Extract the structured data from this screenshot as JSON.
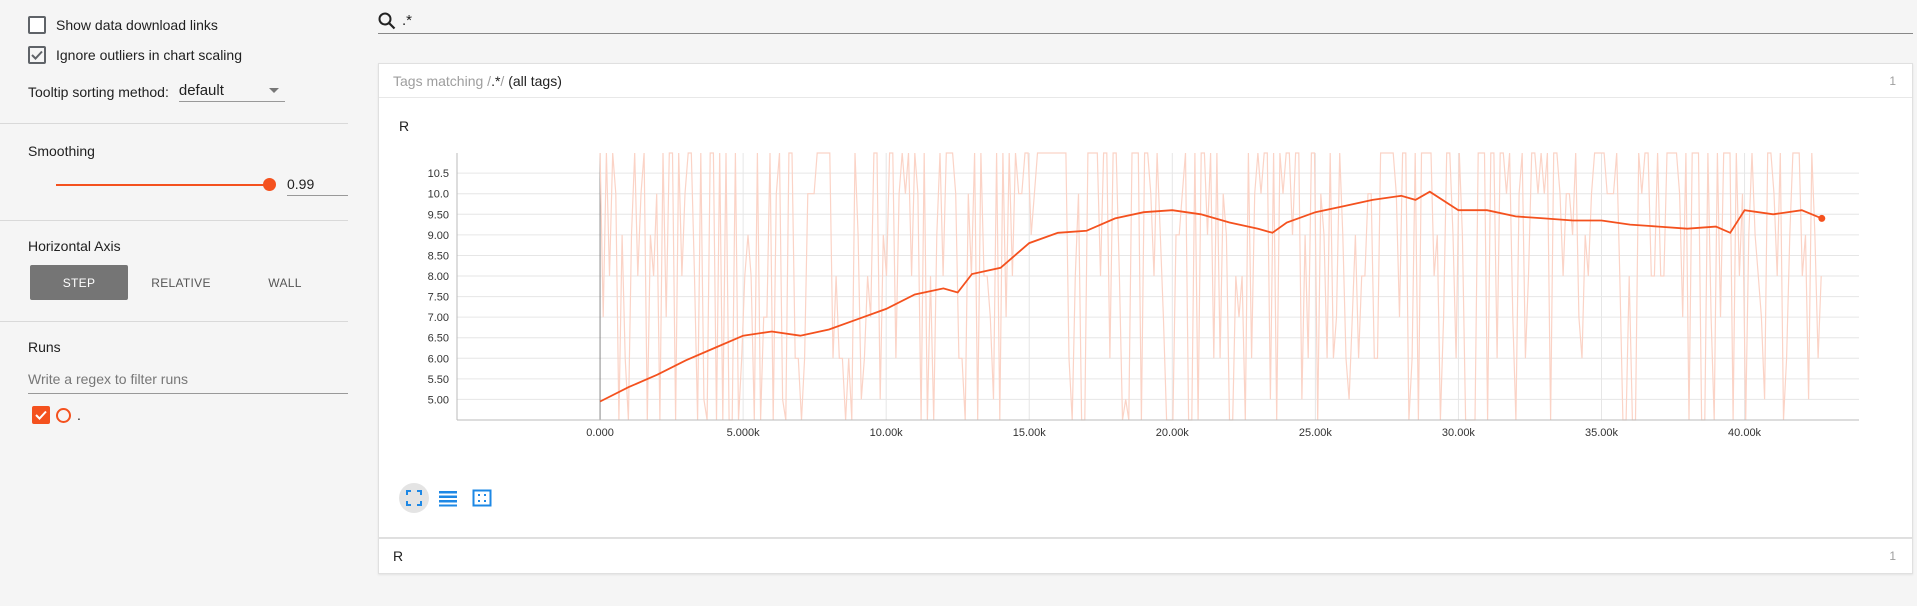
{
  "sidebar": {
    "show_download_links": {
      "label": "Show data download links",
      "checked": false
    },
    "ignore_outliers": {
      "label": "Ignore outliers in chart scaling",
      "checked": true
    },
    "tooltip_sorting": {
      "label": "Tooltip sorting method:",
      "value": "default"
    },
    "smoothing": {
      "title": "Smoothing",
      "value": "0.99",
      "fraction": 0.99
    },
    "horizontal_axis": {
      "title": "Horizontal Axis",
      "options": [
        "STEP",
        "RELATIVE",
        "WALL"
      ],
      "selected": "STEP"
    },
    "runs": {
      "title": "Runs",
      "filter_placeholder": "Write a regex to filter runs",
      "items": [
        {
          "name": ".",
          "checked": true,
          "color": "#f4511e"
        }
      ]
    }
  },
  "search": {
    "value": ".*"
  },
  "tag_group": {
    "prefix": "Tags matching /",
    "regex": ".*",
    "suffix": "/ ",
    "all_tags": "(all tags)",
    "count": "1"
  },
  "chart_card": {
    "title": "R"
  },
  "bottom_card": {
    "title": "R",
    "count": "1"
  },
  "colors": {
    "accent": "#f4511e",
    "raw_line": "#fbd3c6"
  },
  "icons": {
    "search": "search-icon",
    "fit": "fit-domain-icon",
    "log": "log-scale-icon",
    "expand": "expand-icon"
  },
  "chart_data": {
    "type": "line",
    "title": "R",
    "xlabel": "",
    "ylabel": "",
    "xlim": [
      -5000,
      44000
    ],
    "ylim": [
      4.5,
      10.99
    ],
    "xticks": [
      0,
      5000,
      10000,
      15000,
      20000,
      25000,
      30000,
      35000,
      40000
    ],
    "xtick_labels": [
      "0.000",
      "5.000k",
      "10.00k",
      "15.00k",
      "20.00k",
      "25.00k",
      "30.00k",
      "35.00k",
      "40.00k"
    ],
    "yticks": [
      5.0,
      5.5,
      6.0,
      6.5,
      7.0,
      7.5,
      8.0,
      8.5,
      9.0,
      9.5,
      10.0,
      10.5
    ],
    "ytick_labels": [
      "5.00",
      "5.50",
      "6.00",
      "6.50",
      "7.00",
      "7.50",
      "8.00",
      "8.50",
      "9.00",
      "9.50",
      "10.0",
      "10.5"
    ],
    "grid": true,
    "series": [
      {
        "smoothed": true,
        "x": [
          0,
          1000,
          2000,
          3000,
          4000,
          5000,
          6000,
          7000,
          8000,
          9000,
          10000,
          11000,
          12000,
          12500,
          13000,
          14000,
          14500,
          15000,
          16000,
          17000,
          18000,
          19000,
          20000,
          21000,
          22000,
          23000,
          23500,
          24000,
          25000,
          26000,
          27000,
          28000,
          28500,
          29000,
          30000,
          31000,
          32000,
          33000,
          34000,
          35000,
          36000,
          37000,
          38000,
          39000,
          39500,
          40000,
          41000,
          42000,
          42700
        ],
        "y": [
          4.95,
          5.3,
          5.6,
          5.95,
          6.25,
          6.55,
          6.65,
          6.55,
          6.7,
          6.95,
          7.2,
          7.55,
          7.7,
          7.6,
          8.05,
          8.2,
          8.5,
          8.8,
          9.05,
          9.1,
          9.4,
          9.55,
          9.6,
          9.5,
          9.3,
          9.15,
          9.05,
          9.3,
          9.55,
          9.7,
          9.85,
          9.95,
          9.85,
          10.05,
          9.6,
          9.6,
          9.45,
          9.4,
          9.35,
          9.35,
          9.25,
          9.2,
          9.15,
          9.2,
          9.05,
          9.6,
          9.5,
          9.6,
          9.4
        ]
      }
    ]
  }
}
